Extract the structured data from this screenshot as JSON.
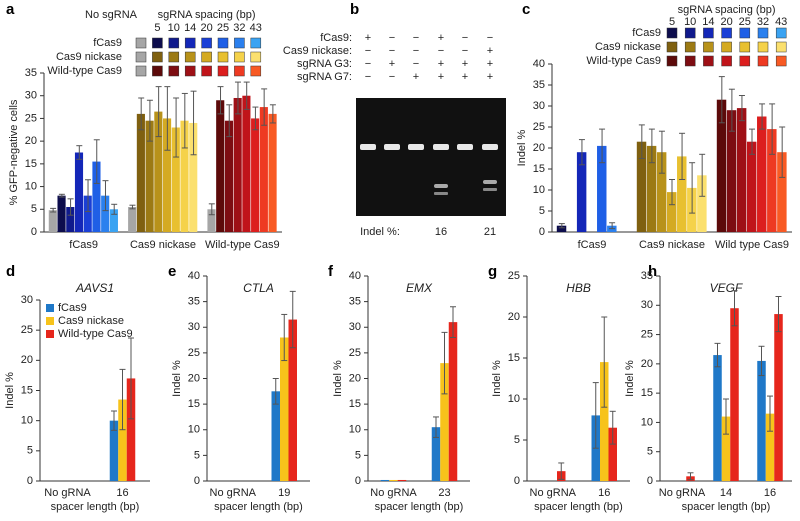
{
  "chart_data": [
    {
      "type": "bar",
      "panel_label": "a",
      "ylabel": "% GFP-negative cells",
      "legend_title": "sgRNA spacing (bp)",
      "categories": [
        "No sgRNA",
        5,
        10,
        14,
        20,
        25,
        32,
        43
      ],
      "group_labels": [
        "fCas9",
        "Cas9 nickase",
        "Wild-type Cas9"
      ],
      "series": [
        {
          "name": "fCas9",
          "colors": [
            "#a6a6a6",
            "#0d0d4d",
            "#101a8c",
            "#1427b8",
            "#1a3fd6",
            "#1f5fe6",
            "#2b80ee",
            "#3aa3f2"
          ],
          "values": [
            4.8,
            8,
            5.5,
            17.5,
            8,
            15.5,
            8,
            5
          ],
          "errors": [
            0.4,
            0.3,
            1.8,
            1.5,
            3.5,
            4.8,
            3.3,
            1.1
          ]
        },
        {
          "name": "Cas9 nickase",
          "colors": [
            "#a6a6a6",
            "#7f6010",
            "#9c7a14",
            "#b8921a",
            "#d4aa22",
            "#e8c030",
            "#f5d24a",
            "#fbe06e"
          ],
          "values": [
            5.5,
            26,
            24.5,
            26.5,
            25,
            23,
            24.5,
            24
          ],
          "errors": [
            0.4,
            3.5,
            4.5,
            5.5,
            7,
            6.5,
            6,
            7
          ]
        },
        {
          "name": "Wild-type Cas9",
          "colors": [
            "#a6a6a6",
            "#5c0a0a",
            "#7d0d12",
            "#9e1016",
            "#c0141a",
            "#dc1e1e",
            "#ee3a22",
            "#f85a24"
          ],
          "values": [
            5,
            29,
            24.5,
            29.5,
            30,
            25,
            27.5,
            26
          ],
          "errors": [
            1.2,
            3,
            3.5,
            3.5,
            3,
            2.5,
            4,
            2
          ]
        }
      ],
      "ylim": [
        0,
        35
      ],
      "yticks": [
        0,
        5,
        10,
        15,
        20,
        25,
        30,
        35
      ]
    },
    {
      "type": "bar",
      "panel_label": "c",
      "ylabel": "Indel %",
      "legend_title": "sgRNA spacing (bp)",
      "categories": [
        5,
        10,
        14,
        20,
        25,
        32,
        43
      ],
      "group_labels": [
        "fCas9",
        "Cas9 nickase",
        "Wild type Cas9"
      ],
      "series": [
        {
          "name": "fCas9",
          "colors": [
            "#0d0d4d",
            "#101a8c",
            "#1427b8",
            "#1a3fd6",
            "#1f5fe6",
            "#2b80ee",
            "#3aa3f2"
          ],
          "values": [
            1.5,
            0,
            19,
            0,
            20.5,
            1.5,
            0
          ],
          "errors": [
            0.5,
            null,
            3,
            null,
            4,
            0.7,
            null
          ]
        },
        {
          "name": "Cas9 nickase",
          "colors": [
            "#7f6010",
            "#9c7a14",
            "#b8921a",
            "#d4aa22",
            "#e8c030",
            "#f5d24a",
            "#fbe06e"
          ],
          "values": [
            21.5,
            20.5,
            19,
            9.5,
            18,
            10.5,
            13.5
          ],
          "errors": [
            4,
            4,
            5,
            3,
            5.5,
            6,
            5
          ]
        },
        {
          "name": "Wild-type Cas9",
          "colors": [
            "#5c0a0a",
            "#7d0d12",
            "#9e1016",
            "#c0141a",
            "#dc1e1e",
            "#ee3a22",
            "#f85a24"
          ],
          "values": [
            31.5,
            29,
            29.5,
            21.5,
            27.5,
            24.5,
            19
          ],
          "errors": [
            5.5,
            5,
            3,
            3,
            3,
            6,
            6
          ]
        }
      ],
      "ylim": [
        0,
        40
      ],
      "yticks": [
        0,
        5,
        10,
        15,
        20,
        25,
        30,
        35,
        40
      ]
    },
    {
      "type": "bar",
      "panel_label": "d",
      "title": "AAVS1",
      "ylabel": "Indel %",
      "xlabel": "spacer length (bp)",
      "legend": "upper left",
      "categories": [
        "No gRNA",
        "16"
      ],
      "series": [
        {
          "name": "fCas9",
          "color": "#1f78c8",
          "values": [
            0,
            10
          ],
          "errors": [
            null,
            1.6
          ]
        },
        {
          "name": "Cas9 nickase",
          "color": "#f7c31b",
          "values": [
            0,
            13.5
          ],
          "errors": [
            null,
            5
          ]
        },
        {
          "name": "Wild-type Cas9",
          "color": "#e6261c",
          "values": [
            0,
            17
          ],
          "errors": [
            null,
            6.7
          ]
        }
      ],
      "ylim": [
        0,
        30
      ],
      "yticks": [
        0,
        5,
        10,
        15,
        20,
        25,
        30
      ]
    },
    {
      "type": "bar",
      "panel_label": "e",
      "title": "CTLA",
      "ylabel": "Indel %",
      "xlabel": "spacer length (bp)",
      "categories": [
        "No gRNA",
        "19"
      ],
      "series": [
        {
          "color": "#1f78c8",
          "values": [
            0,
            17.5
          ],
          "errors": [
            null,
            2.5
          ]
        },
        {
          "color": "#f7c31b",
          "values": [
            0,
            28
          ],
          "errors": [
            null,
            4.5
          ]
        },
        {
          "color": "#e6261c",
          "values": [
            0,
            31.5
          ],
          "errors": [
            null,
            5.5
          ]
        }
      ],
      "ylim": [
        0,
        40
      ],
      "yticks": [
        0,
        5,
        10,
        15,
        20,
        25,
        30,
        35,
        40
      ]
    },
    {
      "type": "bar",
      "panel_label": "f",
      "title": "EMX",
      "ylabel": "Indel %",
      "xlabel": "spacer length (bp)",
      "categories": [
        "No gRNA",
        "23"
      ],
      "series": [
        {
          "color": "#1f78c8",
          "values": [
            0.2,
            10.5
          ],
          "errors": [
            null,
            2
          ]
        },
        {
          "color": "#f7c31b",
          "values": [
            0.2,
            23
          ],
          "errors": [
            null,
            6
          ]
        },
        {
          "color": "#e6261c",
          "values": [
            0.2,
            31
          ],
          "errors": [
            null,
            3
          ]
        }
      ],
      "ylim": [
        0,
        40
      ],
      "yticks": [
        0,
        5,
        10,
        15,
        20,
        25,
        30,
        35,
        40
      ]
    },
    {
      "type": "bar",
      "panel_label": "g",
      "title": "HBB",
      "ylabel": "Indel %",
      "xlabel": "spacer length (bp)",
      "categories": [
        "No gRNA",
        "16"
      ],
      "series": [
        {
          "color": "#1f78c8",
          "values": [
            0,
            8
          ],
          "errors": [
            null,
            4
          ]
        },
        {
          "color": "#f7c31b",
          "values": [
            0,
            14.5
          ],
          "errors": [
            null,
            5.5
          ]
        },
        {
          "color": "#e6261c",
          "values": [
            1.2,
            6.5
          ],
          "errors": [
            1,
            2
          ]
        }
      ],
      "ylim": [
        0,
        25
      ],
      "yticks": [
        0,
        5,
        10,
        15,
        20,
        25
      ]
    },
    {
      "type": "bar",
      "panel_label": "h",
      "title": "VEGF",
      "ylabel": "Indel %",
      "xlabel": "spacer length (bp)",
      "categories": [
        "No gRNA",
        "14",
        "16"
      ],
      "series": [
        {
          "color": "#1f78c8",
          "values": [
            0,
            21.5,
            20.5
          ],
          "errors": [
            null,
            2,
            2.5
          ]
        },
        {
          "color": "#f7c31b",
          "values": [
            0,
            11,
            11.5
          ],
          "errors": [
            null,
            3,
            3
          ]
        },
        {
          "color": "#e6261c",
          "values": [
            0.8,
            29.5,
            28.5
          ],
          "errors": [
            0.6,
            3,
            3
          ]
        }
      ],
      "ylim": [
        0,
        35
      ],
      "yticks": [
        0,
        5,
        10,
        15,
        20,
        25,
        30,
        35
      ]
    }
  ],
  "gel": {
    "panel_label": "b",
    "rows": [
      {
        "label": "fCas9:",
        "signs": [
          "+",
          "−",
          "−",
          "+",
          "−",
          "−"
        ]
      },
      {
        "label": "Cas9 nickase:",
        "signs": [
          "−",
          "−",
          "−",
          "−",
          "−",
          "+"
        ]
      },
      {
        "label": "sgRNA G3:",
        "signs": [
          "−",
          "+",
          "−",
          "+",
          "+",
          "+"
        ]
      },
      {
        "label": "sgRNA G7:",
        "signs": [
          "−",
          "−",
          "+",
          "+",
          "+",
          "+"
        ]
      }
    ],
    "indel_label": "Indel %:",
    "indel": [
      null,
      null,
      null,
      16,
      null,
      21
    ]
  }
}
